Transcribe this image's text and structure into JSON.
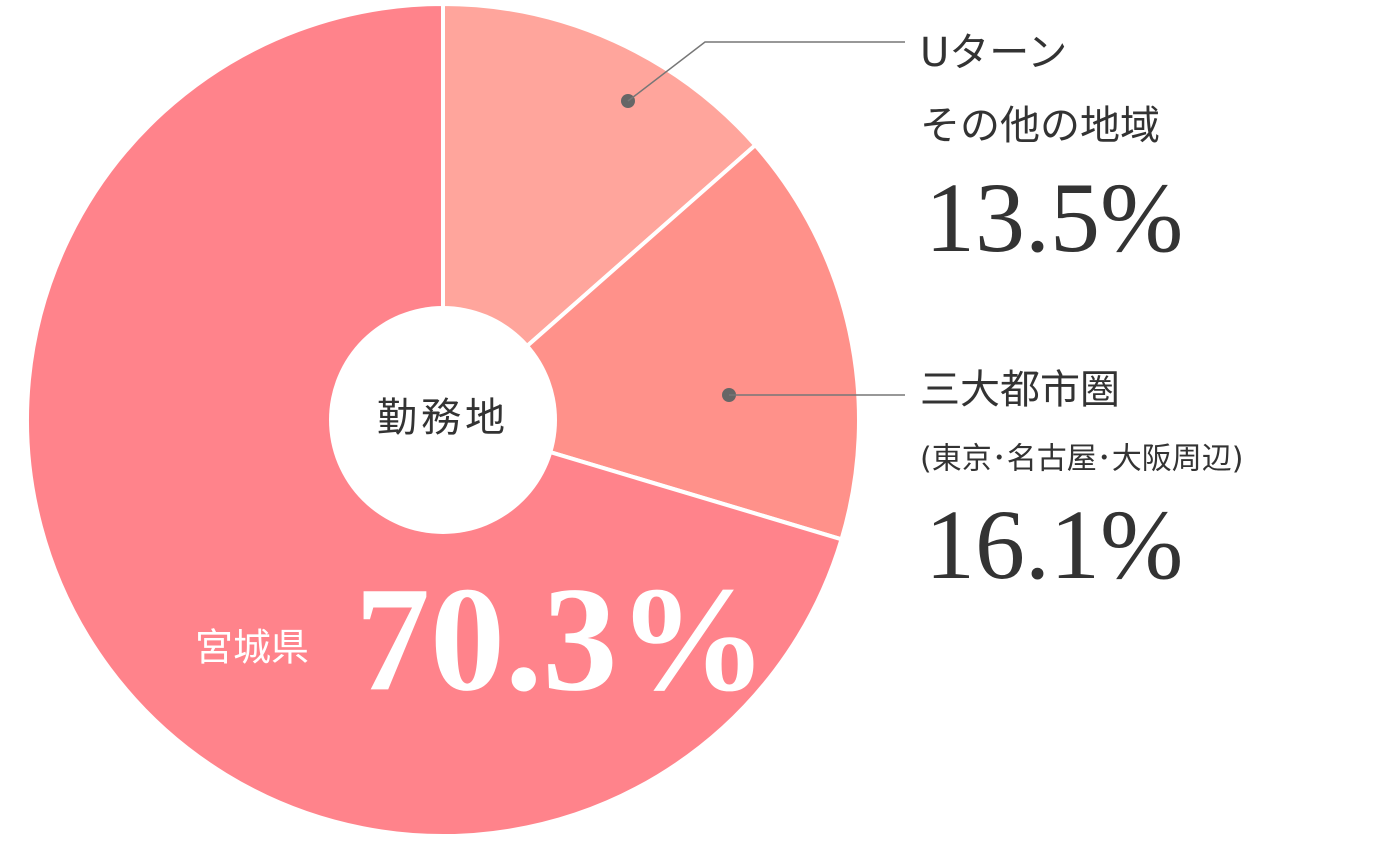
{
  "chart_data": {
    "type": "pie",
    "center_label": "勤務地",
    "categories": [
      [
        "Uターン",
        "その他の地域"
      ],
      [
        "三大都市圏",
        "(東京･名古屋･大阪周辺)"
      ],
      [
        "宮城県"
      ]
    ],
    "values": [
      13.5,
      16.1,
      70.3
    ],
    "value_labels": [
      "13.5%",
      "16.1%",
      "70.3%"
    ],
    "colors": [
      "#ffa59c",
      "#ff918a",
      "#ff838b"
    ]
  }
}
